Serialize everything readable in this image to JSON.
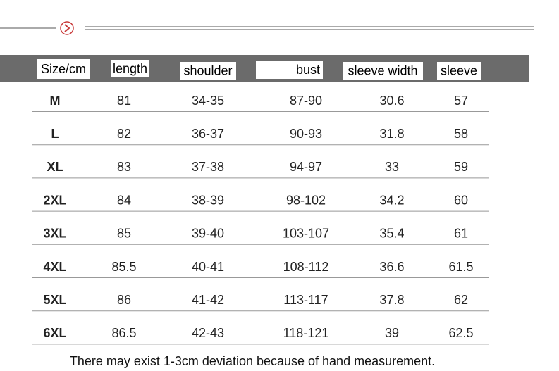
{
  "table": {
    "header": [
      "Size/cm",
      "length",
      "shoulder",
      "bust",
      "sleeve width",
      "sleeve"
    ],
    "rows": [
      [
        "M",
        "81",
        "34-35",
        "87-90",
        "30.6",
        "57"
      ],
      [
        "L",
        "82",
        "36-37",
        "90-93",
        "31.8",
        "58"
      ],
      [
        "XL",
        "83",
        "37-38",
        "94-97",
        "33",
        "59"
      ],
      [
        "2XL",
        "84",
        "38-39",
        "98-102",
        "34.2",
        "60"
      ],
      [
        "3XL",
        "85",
        "39-40",
        "103-107",
        "35.4",
        "61"
      ],
      [
        "4XL",
        "85.5",
        "40-41",
        "108-112",
        "36.6",
        "61.5"
      ],
      [
        "5XL",
        "86",
        "41-42",
        "113-117",
        "37.8",
        "62"
      ],
      [
        "6XL",
        "86.5",
        "42-43",
        "118-121",
        "39",
        "62.5"
      ]
    ],
    "note": "There may exist 1-3cm deviation because of hand measurement."
  }
}
